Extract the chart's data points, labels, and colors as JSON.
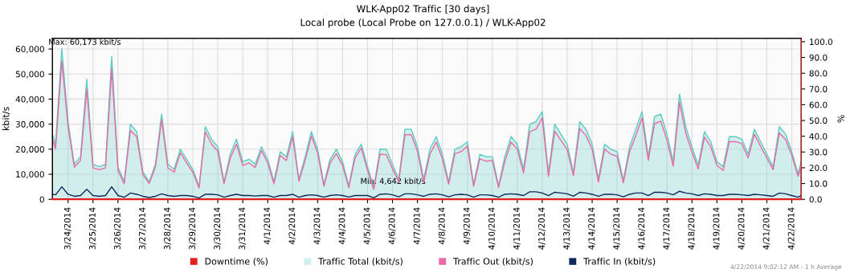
{
  "chart_data": {
    "type": "line",
    "title": "WLK-App02 Traffic [30 days]",
    "subtitle": "Local probe (Local Probe on 127.0.0.1) / WLK-App02",
    "ylabel": "kbit/s",
    "y2label": "%",
    "x": [
      "2014-03-23T09:00",
      "2014-03-23T12:00",
      "2014-03-23T18:00",
      "2014-03-24T00:00",
      "2014-03-24T06:00",
      "2014-03-24T12:00",
      "2014-03-24T18:00",
      "2014-03-25T00:00",
      "2014-03-25T06:00",
      "2014-03-25T12:00",
      "2014-03-25T18:00",
      "2014-03-26T00:00",
      "2014-03-26T06:00",
      "2014-03-26T12:00",
      "2014-03-26T18:00",
      "2014-03-27T00:00",
      "2014-03-27T06:00",
      "2014-03-27T12:00",
      "2014-03-27T18:00",
      "2014-03-28T00:00",
      "2014-03-28T06:00",
      "2014-03-28T12:00",
      "2014-03-28T18:00",
      "2014-03-29T00:00",
      "2014-03-29T06:00",
      "2014-03-29T12:00",
      "2014-03-29T18:00",
      "2014-03-30T00:00",
      "2014-03-30T06:00",
      "2014-03-30T12:00",
      "2014-03-30T18:00",
      "2014-03-31T00:00",
      "2014-03-31T06:00",
      "2014-03-31T12:00",
      "2014-03-31T18:00",
      "2014-04-01T00:00",
      "2014-04-01T06:00",
      "2014-04-01T12:00",
      "2014-04-01T18:00",
      "2014-04-02T00:00",
      "2014-04-02T06:00",
      "2014-04-02T12:00",
      "2014-04-02T18:00",
      "2014-04-03T00:00",
      "2014-04-03T06:00",
      "2014-04-03T12:00",
      "2014-04-03T18:00",
      "2014-04-04T00:00",
      "2014-04-04T06:00",
      "2014-04-04T12:00",
      "2014-04-04T18:00",
      "2014-04-05T00:00",
      "2014-04-05T06:00",
      "2014-04-05T12:00",
      "2014-04-05T18:00",
      "2014-04-06T00:00",
      "2014-04-06T06:00",
      "2014-04-06T12:00",
      "2014-04-06T18:00",
      "2014-04-07T00:00",
      "2014-04-07T06:00",
      "2014-04-07T12:00",
      "2014-04-07T18:00",
      "2014-04-08T00:00",
      "2014-04-08T06:00",
      "2014-04-08T12:00",
      "2014-04-08T18:00",
      "2014-04-09T00:00",
      "2014-04-09T06:00",
      "2014-04-09T12:00",
      "2014-04-09T18:00",
      "2014-04-10T00:00",
      "2014-04-10T06:00",
      "2014-04-10T12:00",
      "2014-04-10T18:00",
      "2014-04-11T00:00",
      "2014-04-11T06:00",
      "2014-04-11T12:00",
      "2014-04-11T18:00",
      "2014-04-12T00:00",
      "2014-04-12T06:00",
      "2014-04-12T12:00",
      "2014-04-12T18:00",
      "2014-04-13T00:00",
      "2014-04-13T06:00",
      "2014-04-13T12:00",
      "2014-04-13T18:00",
      "2014-04-14T00:00",
      "2014-04-14T06:00",
      "2014-04-14T12:00",
      "2014-04-14T18:00",
      "2014-04-15T00:00",
      "2014-04-15T06:00",
      "2014-04-15T12:00",
      "2014-04-15T18:00",
      "2014-04-16T00:00",
      "2014-04-16T06:00",
      "2014-04-16T12:00",
      "2014-04-16T18:00",
      "2014-04-17T00:00",
      "2014-04-17T06:00",
      "2014-04-17T12:00",
      "2014-04-17T18:00",
      "2014-04-18T00:00",
      "2014-04-18T06:00",
      "2014-04-18T12:00",
      "2014-04-18T18:00",
      "2014-04-19T00:00",
      "2014-04-19T06:00",
      "2014-04-19T12:00",
      "2014-04-19T18:00",
      "2014-04-20T00:00",
      "2014-04-20T06:00",
      "2014-04-20T12:00",
      "2014-04-20T18:00",
      "2014-04-21T00:00",
      "2014-04-21T06:00",
      "2014-04-21T12:00",
      "2014-04-21T18:00",
      "2014-04-22T00:00",
      "2014-04-22T06:00",
      "2014-04-22T09:00"
    ],
    "series": [
      {
        "name": "Downtime (%)",
        "axis": "y2",
        "color": "#e3201b",
        "x": [
          "2014-03-23T09:00",
          "2014-04-22T09:00"
        ],
        "values": [
          0,
          0
        ]
      },
      {
        "name": "Traffic Total (kbit/s)",
        "type": "area",
        "color": "#5ccbc2",
        "values": [
          26000,
          22000,
          60173,
          31000,
          14000,
          17000,
          48000,
          14000,
          13000,
          14000,
          57000,
          13000,
          7000,
          30000,
          27000,
          11000,
          7000,
          14000,
          34000,
          14000,
          12000,
          20000,
          16000,
          12000,
          5000,
          29000,
          24000,
          21000,
          7000,
          18000,
          24000,
          15000,
          16000,
          14000,
          21000,
          16000,
          7000,
          19000,
          17000,
          27000,
          8000,
          17000,
          27000,
          20000,
          6000,
          16000,
          20000,
          15000,
          5500,
          18000,
          22000,
          13000,
          4642,
          20000,
          20000,
          14000,
          8000,
          28000,
          28000,
          21000,
          8000,
          20000,
          25000,
          18000,
          7000,
          20000,
          21000,
          23000,
          6000,
          18000,
          17000,
          17000,
          5500,
          17000,
          25000,
          22000,
          12000,
          30000,
          31000,
          35000,
          10600,
          30000,
          26000,
          22000,
          10600,
          31000,
          28000,
          22000,
          8000,
          22000,
          20000,
          19000,
          7600,
          21000,
          28000,
          35000,
          17000,
          33000,
          34000,
          26000,
          15000,
          42000,
          29000,
          21000,
          13600,
          27000,
          23000,
          15000,
          13000,
          25000,
          25000,
          24000,
          18000,
          28000,
          23000,
          18000,
          13000,
          29000,
          26000,
          19000,
          10000,
          15000
        ]
      },
      {
        "name": "Traffic Out (kbit/s)",
        "color": "#e96aa6",
        "values": [
          24000,
          20200,
          55200,
          29000,
          12800,
          15500,
          44000,
          12500,
          11800,
          12500,
          52000,
          11500,
          6200,
          27500,
          25000,
          9800,
          6300,
          12800,
          31800,
          12500,
          10800,
          18500,
          14500,
          10800,
          4500,
          27000,
          22000,
          19200,
          6200,
          16500,
          22000,
          13500,
          14500,
          12700,
          19500,
          14500,
          6200,
          17500,
          15500,
          25000,
          7200,
          15500,
          25200,
          18500,
          5200,
          14500,
          18200,
          13500,
          4600,
          16500,
          20500,
          11500,
          4000,
          18000,
          17800,
          12200,
          7000,
          25800,
          25800,
          19200,
          6800,
          18000,
          22800,
          16200,
          6000,
          18200,
          19000,
          21200,
          5200,
          16200,
          15200,
          15500,
          4700,
          15000,
          22800,
          20000,
          10500,
          27000,
          28000,
          32500,
          9100,
          27200,
          23500,
          19800,
          9400,
          28200,
          25500,
          20000,
          6800,
          20000,
          18000,
          17200,
          6600,
          19000,
          25500,
          32500,
          15500,
          30200,
          31200,
          23500,
          13200,
          38800,
          26500,
          18800,
          12100,
          24800,
          21000,
          13500,
          11500,
          23000,
          23000,
          22200,
          16500,
          26000,
          21200,
          16500,
          11800,
          26500,
          23800,
          17500,
          9200,
          13500
        ]
      },
      {
        "name": "Traffic In (kbit/s)",
        "color": "#0c2a5e",
        "values": [
          2000,
          1800,
          5000,
          2000,
          1200,
          1500,
          4000,
          1500,
          1200,
          1500,
          5000,
          1500,
          800,
          2500,
          2000,
          1200,
          700,
          1200,
          2200,
          1500,
          1200,
          1500,
          1500,
          1200,
          500,
          2000,
          2000,
          1800,
          800,
          1500,
          2000,
          1500,
          1500,
          1300,
          1500,
          1500,
          800,
          1500,
          1500,
          2000,
          800,
          1500,
          1800,
          1500,
          800,
          1500,
          1800,
          1500,
          900,
          1500,
          1500,
          1500,
          600,
          2000,
          2200,
          1800,
          1000,
          2200,
          2200,
          1800,
          1200,
          2000,
          2200,
          1800,
          1000,
          1800,
          2000,
          1800,
          800,
          1800,
          1800,
          1500,
          800,
          2000,
          2200,
          2000,
          1500,
          3000,
          3000,
          2500,
          1500,
          2800,
          2500,
          2200,
          1200,
          2800,
          2500,
          2000,
          1200,
          2000,
          2000,
          1800,
          1000,
          2000,
          2500,
          2500,
          1500,
          2800,
          2800,
          2500,
          1800,
          3200,
          2500,
          2200,
          1500,
          2200,
          2000,
          1500,
          1500,
          2000,
          2000,
          1800,
          1500,
          2000,
          1800,
          1500,
          1200,
          2500,
          2200,
          1500,
          800,
          1500
        ]
      }
    ],
    "xlim": [
      "2014-03-23T09:00",
      "2014-04-22T09:00"
    ],
    "xticks": [
      {
        "value": "2014-03-24",
        "label": "3/24/2014"
      },
      {
        "value": "2014-03-25",
        "label": "3/25/2014"
      },
      {
        "value": "2014-03-26",
        "label": "3/26/2014"
      },
      {
        "value": "2014-03-27",
        "label": "3/27/2014"
      },
      {
        "value": "2014-03-28",
        "label": "3/28/2014"
      },
      {
        "value": "2014-03-29",
        "label": "3/29/2014"
      },
      {
        "value": "2014-03-30",
        "label": "3/30/2014"
      },
      {
        "value": "2014-03-31",
        "label": "3/31/2014"
      },
      {
        "value": "2014-04-01",
        "label": "4/1/2014"
      },
      {
        "value": "2014-04-02",
        "label": "4/2/2014"
      },
      {
        "value": "2014-04-03",
        "label": "4/3/2014"
      },
      {
        "value": "2014-04-04",
        "label": "4/4/2014"
      },
      {
        "value": "2014-04-05",
        "label": "4/5/2014"
      },
      {
        "value": "2014-04-06",
        "label": "4/6/2014"
      },
      {
        "value": "2014-04-07",
        "label": "4/7/2014"
      },
      {
        "value": "2014-04-08",
        "label": "4/8/2014"
      },
      {
        "value": "2014-04-09",
        "label": "4/9/2014"
      },
      {
        "value": "2014-04-10",
        "label": "4/10/2014"
      },
      {
        "value": "2014-04-11",
        "label": "4/11/2014"
      },
      {
        "value": "2014-04-12",
        "label": "4/12/2014"
      },
      {
        "value": "2014-04-13",
        "label": "4/13/2014"
      },
      {
        "value": "2014-04-14",
        "label": "4/14/2014"
      },
      {
        "value": "2014-04-15",
        "label": "4/15/2014"
      },
      {
        "value": "2014-04-16",
        "label": "4/16/2014"
      },
      {
        "value": "2014-04-17",
        "label": "4/17/2014"
      },
      {
        "value": "2014-04-18",
        "label": "4/18/2014"
      },
      {
        "value": "2014-04-19",
        "label": "4/19/2014"
      },
      {
        "value": "2014-04-20",
        "label": "4/20/2014"
      },
      {
        "value": "2014-04-21",
        "label": "4/21/2014"
      },
      {
        "value": "2014-04-22",
        "label": "4/22/2014"
      }
    ],
    "ylim": [
      0,
      64300
    ],
    "yticks": [
      0,
      {
        "value": 10000,
        "label": "10,000"
      },
      {
        "value": 20000,
        "label": "20,000"
      },
      {
        "value": 30000,
        "label": "30,000"
      },
      {
        "value": 40000,
        "label": "40,000"
      },
      {
        "value": 50000,
        "label": "50,000"
      },
      {
        "value": 60000,
        "label": "60,000"
      }
    ],
    "y2lim": [
      0,
      102.2
    ],
    "y2ticks": [
      {
        "value": 0,
        "label": "0.0"
      },
      {
        "value": 10,
        "label": "10.0"
      },
      {
        "value": 20,
        "label": "20.0"
      },
      {
        "value": 30,
        "label": "30.0"
      },
      {
        "value": 40,
        "label": "40.0"
      },
      {
        "value": 50,
        "label": "50.0"
      },
      {
        "value": 60,
        "label": "60.0"
      },
      {
        "value": 70,
        "label": "70.0"
      },
      {
        "value": 80,
        "label": "80.0"
      },
      {
        "value": 90,
        "label": "90.0"
      },
      {
        "value": 100,
        "label": "100.0"
      }
    ],
    "grid": true,
    "legend": "bottom",
    "marker": "none",
    "line_style": "solid",
    "annotations": [
      {
        "text": "Max: 60,173 kbit/s",
        "x": "2014-03-23T18:00",
        "y": 60173
      },
      {
        "text": "Min: 4,642 kbit/s",
        "x": "2014-04-05T06:00",
        "y": 4642
      },
      "4/22/2014 9:02:12 AM - 1 h Average"
    ]
  }
}
